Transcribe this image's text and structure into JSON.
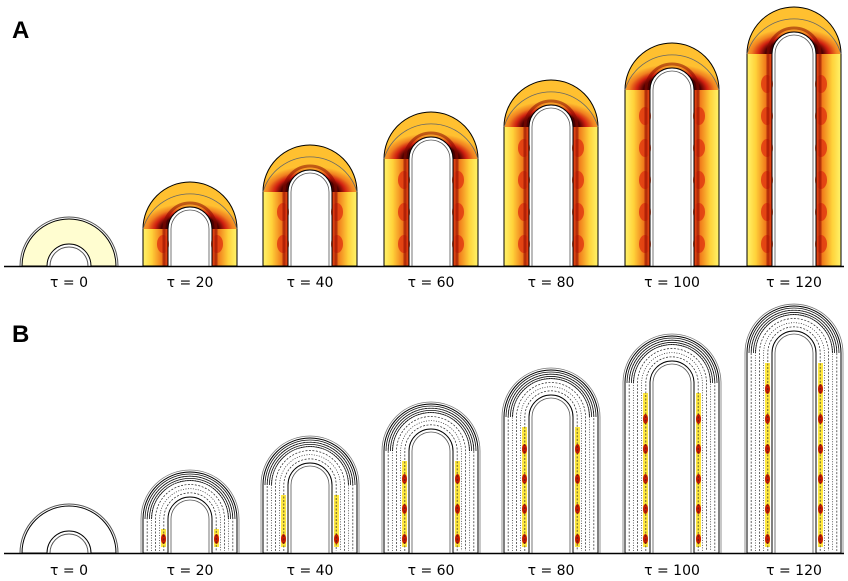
{
  "panels": [
    {
      "id": "A",
      "label": "A",
      "style": "heat"
    },
    {
      "id": "B",
      "label": "B",
      "style": "contour"
    }
  ],
  "stages": [
    {
      "tau": 0,
      "label": "τ = 0"
    },
    {
      "tau": 20,
      "label": "τ = 20"
    },
    {
      "tau": 40,
      "label": "τ = 40"
    },
    {
      "tau": 60,
      "label": "τ = 60"
    },
    {
      "tau": 80,
      "label": "τ = 80"
    },
    {
      "tau": 100,
      "label": "τ = 100"
    },
    {
      "tau": 120,
      "label": "τ = 120"
    }
  ],
  "colors": {
    "heat_light": "#fffb9c",
    "heat_mid": "#ffb020",
    "heat_dark": "#e03010",
    "heat_core": "#5a0000",
    "initial_fill": "#fffdd0",
    "contour_line": "#222222",
    "outline": "#000000"
  }
}
